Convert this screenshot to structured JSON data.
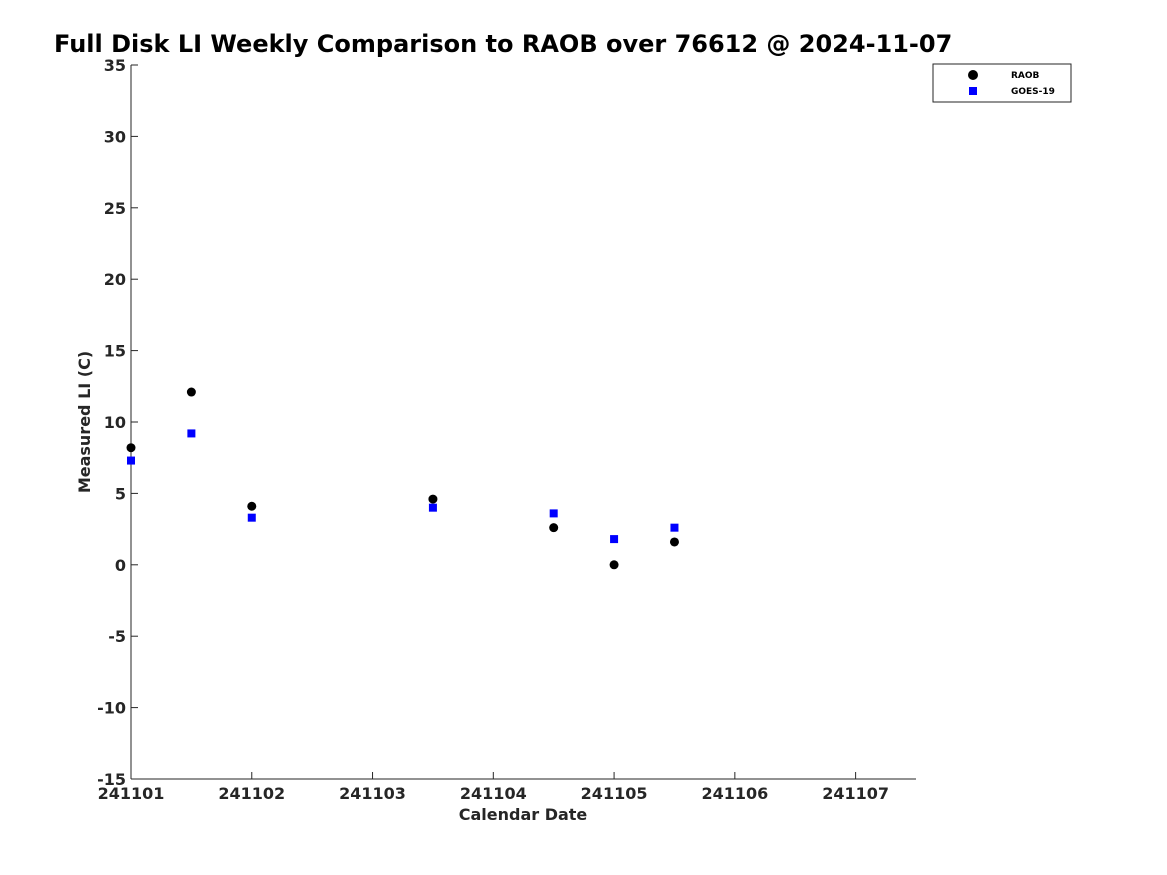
{
  "chart_data": {
    "type": "scatter",
    "title": "Full Disk LI Weekly Comparison to RAOB over 76612 @ 2024-11-07",
    "xlabel": "Calendar Date",
    "ylabel": "Measured LI (C)",
    "xlim": [
      241101,
      241107.5
    ],
    "ylim": [
      -15,
      35
    ],
    "x_ticks": [
      241101,
      241102,
      241103,
      241104,
      241105,
      241106,
      241107
    ],
    "x_tick_labels": [
      "241101",
      "241102",
      "241103",
      "241104",
      "241105",
      "241106",
      "241107"
    ],
    "y_ticks": [
      -15,
      -10,
      -5,
      0,
      5,
      10,
      15,
      20,
      25,
      30,
      35
    ],
    "y_tick_labels": [
      "-15",
      "-10",
      "-5",
      "0",
      "5",
      "10",
      "15",
      "20",
      "25",
      "30",
      "35"
    ],
    "grid": false,
    "legend_position": "top-right, outside plot",
    "series": [
      {
        "name": "RAOB",
        "marker": "circle",
        "color": "#000000",
        "x": [
          241101,
          241101.5,
          241102,
          241103.5,
          241104.5,
          241105,
          241105.5
        ],
        "y": [
          8.2,
          12.1,
          4.1,
          4.6,
          2.6,
          0.0,
          1.6
        ]
      },
      {
        "name": "GOES-19",
        "marker": "square",
        "color": "#0000ff",
        "x": [
          241101,
          241101.5,
          241102,
          241103.5,
          241104.5,
          241105,
          241105.5
        ],
        "y": [
          7.3,
          9.2,
          3.3,
          4.0,
          3.6,
          1.8,
          2.6
        ]
      }
    ]
  }
}
